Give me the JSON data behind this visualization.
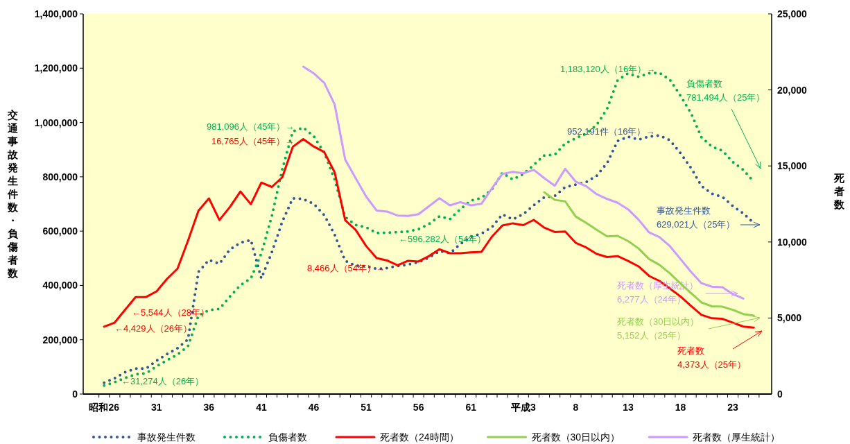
{
  "chart_data": {
    "type": "line",
    "ylabel": "交通事故発生件数・負傷者数",
    "y2label": "死者数",
    "categories": [
      "昭和26",
      null,
      null,
      null,
      null,
      "31",
      null,
      null,
      null,
      null,
      "36",
      null,
      null,
      null,
      null,
      "41",
      null,
      null,
      null,
      null,
      "46",
      null,
      null,
      null,
      null,
      "51",
      null,
      null,
      null,
      null,
      "56",
      null,
      null,
      null,
      null,
      "61",
      null,
      null,
      null,
      null,
      "平成3",
      null,
      null,
      null,
      null,
      "8",
      null,
      null,
      null,
      null,
      "13",
      null,
      null,
      null,
      null,
      "18",
      null,
      null,
      null,
      null,
      "23",
      null,
      null
    ],
    "series": [
      {
        "name": "事故発生件数",
        "color": "#2f5597",
        "line_style": "dotted",
        "values": [
          41423,
          58487,
          80019,
          93869,
          93981,
          122691,
          146833,
          168799,
          201292,
          449917,
          493693,
          479825,
          531966,
          557183,
          567286,
          425944,
          521481,
          635056,
          720880,
          718080,
          700290,
          659283,
          586713,
          490452,
          472938,
          471041,
          460649,
          464037,
          471573,
          476677,
          485578,
          502261,
          526362,
          518642,
          552788,
          579190,
          590723,
          614481,
          661363,
          643097,
          662388,
          695345,
          724675,
          729461,
          761794,
          771085,
          780401,
          803882,
          850371,
          931950,
          947253,
          936950,
          948281,
          952191,
          934346,
          887267,
          832704,
          766394,
          737628,
          725924,
          692084,
          665157,
          629021
        ]
      },
      {
        "name": "負傷者数",
        "color": "#00b050",
        "line_style": "dotted",
        "values": [
          31274,
          43321,
          59280,
          72390,
          76501,
          102072,
          124530,
          145432,
          175951,
          289156,
          308697,
          313813,
          359089,
          401117,
          425666,
          517775,
          655377,
          828071,
          967000,
          981096,
          949689,
          889198,
          789948,
          651420,
          622467,
          613957,
          593211,
          594116,
          596282,
          598719,
          607346,
          626192,
          654822,
          644321,
          681346,
          712330,
          722179,
          752845,
          814832,
          790295,
          810245,
          844003,
          878633,
          881723,
          922677,
          942204,
          958925,
          990675,
          1050399,
          1155697,
          1181039,
          1168029,
          1181681,
          1183120,
          1157113,
          1098564,
          1034652,
          945504,
          911215,
          896208,
          854613,
          825396,
          781494
        ]
      },
      {
        "name": "死者数（24時間）",
        "color": "#ff0000",
        "line_style": "solid",
        "axis": "y2",
        "values": [
          4429,
          4696,
          5544,
          6374,
          6379,
          6751,
          7575,
          8248,
          10079,
          12055,
          12865,
          11445,
          12301,
          13318,
          12484,
          13904,
          13618,
          14256,
          16257,
          16765,
          16278,
          15918,
          14574,
          11432,
          10792,
          9734,
          8945,
          8783,
          8466,
          8760,
          8719,
          9073,
          9520,
          9262,
          9261,
          9317,
          9347,
          10344,
          11086,
          11227,
          11109,
          11452,
          10945,
          10653,
          10684,
          9943,
          9642,
          9214,
          9012,
          9073,
          8757,
          8396,
          7768,
          7436,
          6937,
          6415,
          5796,
          5209,
          4979,
          4948,
          4691,
          4438,
          4373
        ]
      },
      {
        "name": "死者数（30日以内）",
        "color": "#92d050",
        "line_style": "solid",
        "axis": "y2",
        "values": [
          null,
          null,
          null,
          null,
          null,
          null,
          null,
          null,
          null,
          null,
          null,
          null,
          null,
          null,
          null,
          null,
          null,
          null,
          null,
          null,
          null,
          null,
          null,
          null,
          null,
          null,
          null,
          null,
          null,
          null,
          null,
          null,
          null,
          null,
          null,
          null,
          null,
          null,
          null,
          null,
          null,
          null,
          13269,
          12768,
          12670,
          11674,
          11254,
          10805,
          10372,
          10403,
          10060,
          9575,
          8877,
          8492,
          7931,
          7272,
          6639,
          6023,
          5772,
          5745,
          5535,
          5261,
          5152
        ]
      },
      {
        "name": "死者数（厚生統計）",
        "color": "#cc99ff",
        "line_style": "solid",
        "axis": "y2",
        "values": [
          null,
          null,
          null,
          null,
          null,
          null,
          null,
          null,
          null,
          null,
          null,
          null,
          null,
          null,
          null,
          null,
          null,
          null,
          null,
          21530,
          21090,
          20470,
          19040,
          15420,
          14200,
          12990,
          12070,
          12000,
          11740,
          11710,
          11830,
          12350,
          12880,
          12410,
          12620,
          12410,
          12510,
          13520,
          14480,
          14610,
          14520,
          14740,
          14200,
          13700,
          14810,
          13970,
          13670,
          13140,
          12830,
          12580,
          12150,
          11470,
          10630,
          10320,
          9720,
          8880,
          8040,
          7290,
          7060,
          7030,
          6570,
          6277,
          null
        ]
      }
    ],
    "ylim": [
      0,
      1400000
    ],
    "yticks": [
      0,
      {
        "value": 200000,
        "label": "200,000"
      },
      {
        "value": 400000,
        "label": "400,000"
      },
      {
        "value": 600000,
        "label": "600,000"
      },
      {
        "value": 800000,
        "label": "800,000"
      },
      {
        "value": 1000000,
        "label": "1,000,000"
      },
      {
        "value": 1200000,
        "label": "1,200,000"
      },
      {
        "value": 1400000,
        "label": "1,400,000"
      }
    ],
    "y2lim": [
      0,
      25000
    ],
    "y2ticks": [
      0,
      {
        "value": 5000,
        "label": "5,000"
      },
      {
        "value": 10000,
        "label": "10,000"
      },
      {
        "value": 15000,
        "label": "15,000"
      },
      {
        "value": 20000,
        "label": "20,000"
      },
      {
        "value": 25000,
        "label": "25,000"
      }
    ],
    "legend": "bottom",
    "annotations": [
      "1,183,120人（16年）→",
      "負傷者数\n781,494人（25年）",
      "981,096人（45年）→",
      "16,765人（45年）→",
      "952,191件（16年）→",
      "事故発生件数\n629,021人（25年）",
      "8,466人（54年）→",
      "←596,282人（54年）",
      "←5,544人（28年）",
      "←4,429人（26年）",
      "←31,274人（26年）",
      "死者数（厚生統計）\n6,277人（24年）",
      "死者数（30日以内）\n5,152人（25年）",
      "死者数\n4,373人（25年）"
    ]
  }
}
